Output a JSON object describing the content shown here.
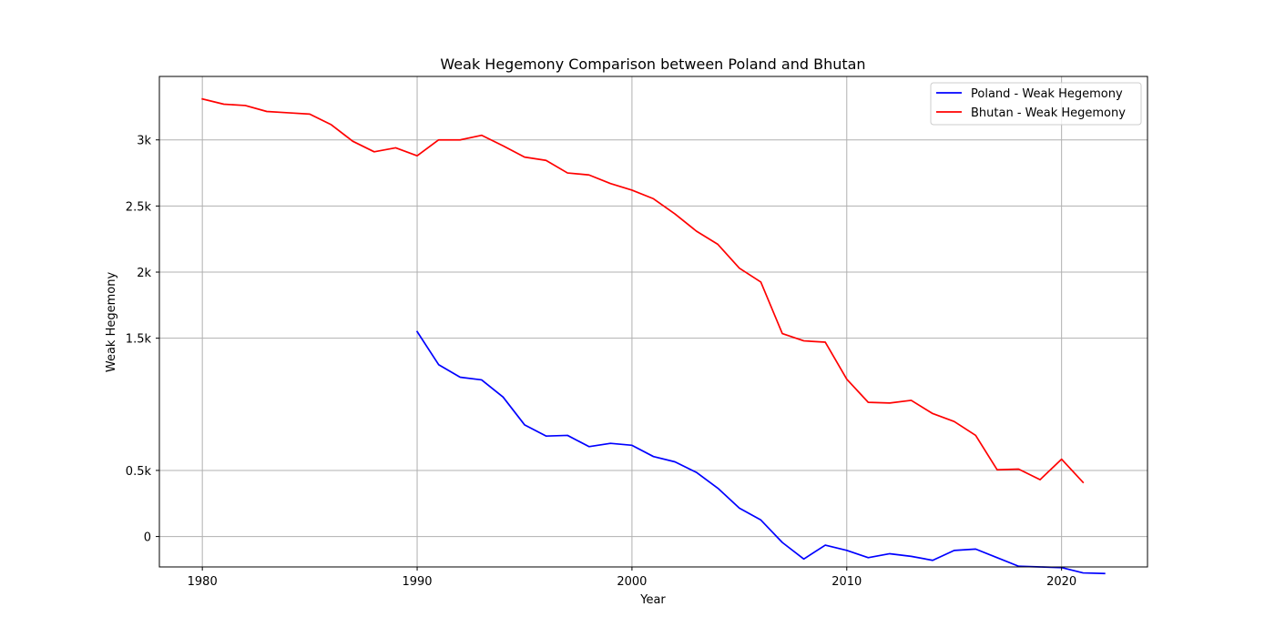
{
  "chart_data": {
    "type": "line",
    "title": "Weak Hegemony Comparison between Poland and Bhutan",
    "xlabel": "Year",
    "ylabel": "Weak Hegemony",
    "xlim": [
      1978,
      2024
    ],
    "ylim": [
      -230,
      3480
    ],
    "xticks": [
      1980,
      1990,
      2000,
      2010,
      2020
    ],
    "xtick_labels": [
      "1980",
      "1990",
      "2000",
      "2010",
      "2020"
    ],
    "yticks": [
      0,
      500,
      1500,
      2000,
      2500,
      3000
    ],
    "ytick_labels": [
      "0",
      "0.5k",
      "1.5k",
      "2k",
      "2.5k",
      "3k"
    ],
    "grid": true,
    "legend_position": "top-right",
    "series": [
      {
        "name": "Poland - Weak Hegemony",
        "color": "#0000ff",
        "x": [
          1990,
          1991,
          1992,
          1993,
          1994,
          1995,
          1996,
          1997,
          1998,
          1999,
          2000,
          2001,
          2002,
          2003,
          2004,
          2005,
          2006,
          2007,
          2008,
          2009,
          2010,
          2011,
          2012,
          2013,
          2014,
          2015,
          2016,
          2017,
          2018,
          2019,
          2020,
          2021,
          2022
        ],
        "y": [
          1550,
          1300,
          1205,
          1185,
          1055,
          845,
          760,
          765,
          680,
          705,
          690,
          605,
          565,
          485,
          365,
          215,
          125,
          -45,
          -170,
          -65,
          -105,
          -160,
          -130,
          -150,
          -180,
          -105,
          -95,
          -160,
          -225,
          -230,
          -235,
          -275,
          -280
        ]
      },
      {
        "name": "Bhutan - Weak Hegemony",
        "color": "#ff0000",
        "x": [
          1980,
          1981,
          1982,
          1983,
          1984,
          1985,
          1986,
          1987,
          1988,
          1989,
          1990,
          1991,
          1992,
          1993,
          1994,
          1995,
          1996,
          1997,
          1998,
          1999,
          2000,
          2001,
          2002,
          2003,
          2004,
          2005,
          2006,
          2007,
          2008,
          2009,
          2010,
          2011,
          2012,
          2013,
          2014,
          2015,
          2016,
          2017,
          2018,
          2019,
          2020,
          2021
        ],
        "y": [
          3310,
          3270,
          3260,
          3215,
          3205,
          3195,
          3115,
          2990,
          2910,
          2940,
          2880,
          3000,
          3000,
          3035,
          2955,
          2870,
          2845,
          2750,
          2735,
          2670,
          2620,
          2555,
          2440,
          2310,
          2210,
          2030,
          1925,
          1535,
          1480,
          1470,
          1190,
          1015,
          1010,
          1030,
          930,
          870,
          765,
          505,
          510,
          430,
          585,
          410
        ]
      }
    ]
  }
}
